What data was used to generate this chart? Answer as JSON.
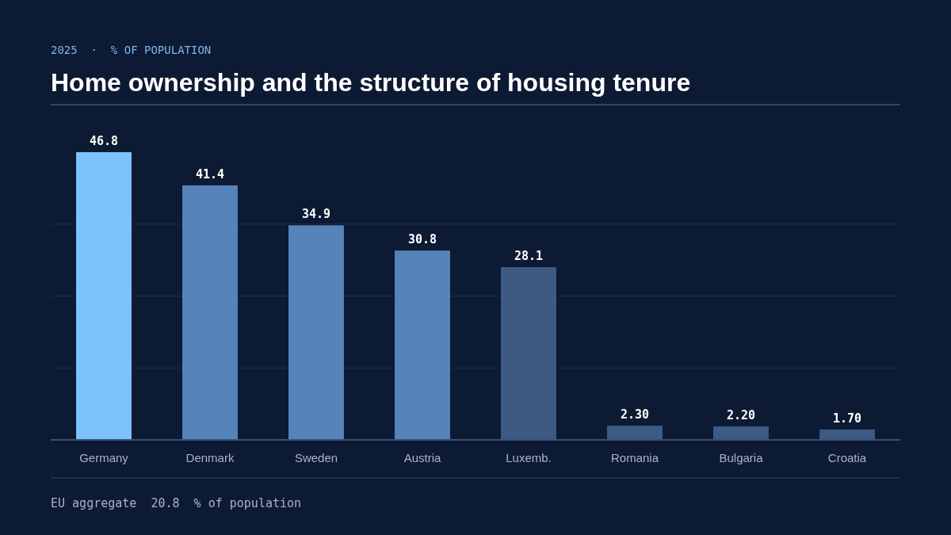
{
  "chart_data": {
    "type": "bar",
    "subtitle": "2025  ·  % OF POPULATION",
    "title": "Home ownership and the structure of housing tenure",
    "categories": [
      "Germany",
      "Denmark",
      "Sweden",
      "Austria",
      "Luxemb.",
      "Romania",
      "Bulgaria",
      "Croatia"
    ],
    "values": [
      46.8,
      41.4,
      34.9,
      30.8,
      28.1,
      2.3,
      2.2,
      1.7
    ],
    "value_labels": [
      "46.8",
      "41.4",
      "34.9",
      "30.8",
      "28.1",
      "2.30",
      "2.20",
      "1.70"
    ],
    "colors": [
      "#7cc3fd",
      "#5583ba",
      "#5583ba",
      "#5583ba",
      "#3d5a82",
      "#3d5a82",
      "#3d5a82",
      "#3d5a82"
    ],
    "ylim": [
      0,
      46.8
    ],
    "yticks": [
      {
        "value": 0,
        "label": null
      },
      {
        "value": 11.7,
        "label": null
      },
      {
        "value": 23.4,
        "label": null
      },
      {
        "value": 35.1,
        "label": null
      }
    ],
    "grid": "y",
    "tick_labels": "x",
    "annotations": [
      "EU aggregate  20.8  % of population"
    ]
  }
}
